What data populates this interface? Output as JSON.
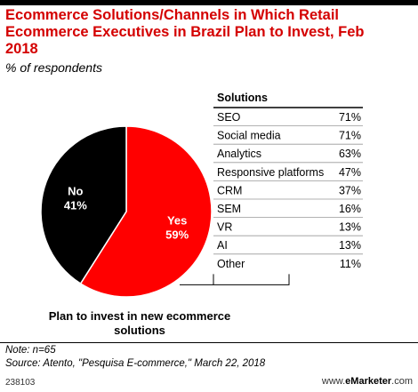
{
  "title": "Ecommerce Solutions/Channels in Which Retail Ecommerce Executives in Brazil Plan to Invest, Feb 2018",
  "subtitle": "% of respondents",
  "pie_caption": "Plan to invest in new ecommerce solutions",
  "table_header": "Solutions",
  "note": "Note: n=65",
  "source": "Source: Atento, \"Pesquisa E-commerce,\" March 22, 2018",
  "chart_id": "238103",
  "brand_prefix": "www.",
  "brand_name": "eMarketer",
  "brand_suffix": ".com",
  "colors": {
    "yes": "#ff0000",
    "no": "#000000",
    "title": "#d40000"
  },
  "chart_data": [
    {
      "type": "pie",
      "title": "Plan to invest in new ecommerce solutions",
      "slices": [
        {
          "label": "Yes",
          "value": 59,
          "value_label": "59%",
          "color": "#ff0000"
        },
        {
          "label": "No",
          "value": 41,
          "value_label": "41%",
          "color": "#000000"
        }
      ]
    },
    {
      "type": "table",
      "title": "Solutions",
      "rows": [
        {
          "label": "SEO",
          "value": 71,
          "value_label": "71%"
        },
        {
          "label": "Social media",
          "value": 71,
          "value_label": "71%"
        },
        {
          "label": "Analytics",
          "value": 63,
          "value_label": "63%"
        },
        {
          "label": "Responsive platforms",
          "value": 47,
          "value_label": "47%"
        },
        {
          "label": "CRM",
          "value": 37,
          "value_label": "37%"
        },
        {
          "label": "SEM",
          "value": 16,
          "value_label": "16%"
        },
        {
          "label": "VR",
          "value": 13,
          "value_label": "13%"
        },
        {
          "label": "AI",
          "value": 13,
          "value_label": "13%"
        },
        {
          "label": "Other",
          "value": 11,
          "value_label": "11%"
        }
      ]
    }
  ]
}
